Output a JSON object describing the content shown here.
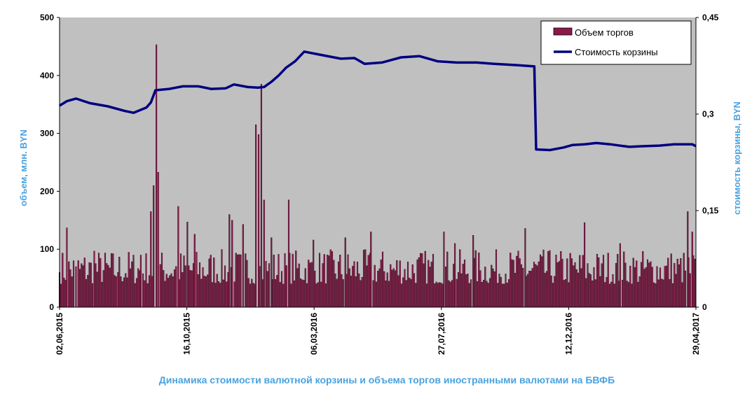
{
  "colors": {
    "plot_bg": "#c0c0c0",
    "bar_fill": "#8b1a4a",
    "line": "#000080",
    "axis_title": "#4aa3df",
    "caption": "#4aa3df"
  },
  "chart_data": {
    "type": "bar+line",
    "title": "Динамика  стоимости валютной корзины и объема торгов иностранными валютами на БВФБ",
    "ylabel_left": "объем, млн. BYN",
    "ylabel_right": "стоимость  корзины, BYN",
    "ylim_left": [
      0,
      500
    ],
    "ylim_right": [
      0,
      0.45
    ],
    "yticks_left": [
      "0",
      "100",
      "200",
      "300",
      "400",
      "500"
    ],
    "yticks_right": [
      "0",
      "0,15",
      "0,3",
      "0,45"
    ],
    "xticks": [
      "02,06,2015",
      "16,10,2015",
      "06,03,2016",
      "27,07,2016",
      "12,12,2016",
      "29,04,2017"
    ],
    "grid": false,
    "legend_position": "top-right",
    "series": [
      {
        "name": "Объем торгов",
        "kind": "bar",
        "axis": "left",
        "peaks": [
          {
            "date": "2015-06-02",
            "value": 60
          },
          {
            "date": "2015-06-10",
            "value": 137
          },
          {
            "date": "2015-06-20",
            "value": 70
          },
          {
            "date": "2015-07-10",
            "value": 97
          },
          {
            "date": "2015-08-05",
            "value": 60
          },
          {
            "date": "2015-08-30",
            "value": 90
          },
          {
            "date": "2015-09-10",
            "value": 165
          },
          {
            "date": "2015-09-13",
            "value": 210
          },
          {
            "date": "2015-09-16",
            "value": 453
          },
          {
            "date": "2015-09-18",
            "value": 233
          },
          {
            "date": "2015-10-10",
            "value": 174
          },
          {
            "date": "2015-10-20",
            "value": 147
          },
          {
            "date": "2015-10-28",
            "value": 126
          },
          {
            "date": "2015-12-05",
            "value": 160
          },
          {
            "date": "2015-12-08",
            "value": 150
          },
          {
            "date": "2015-12-20",
            "value": 143
          },
          {
            "date": "2016-01-03",
            "value": 315
          },
          {
            "date": "2016-01-06",
            "value": 298
          },
          {
            "date": "2016-01-09",
            "value": 385
          },
          {
            "date": "2016-01-12",
            "value": 185
          },
          {
            "date": "2016-01-20",
            "value": 120
          },
          {
            "date": "2016-02-08",
            "value": 185
          },
          {
            "date": "2016-03-06",
            "value": 116
          },
          {
            "date": "2016-04-10",
            "value": 120
          },
          {
            "date": "2016-05-08",
            "value": 130
          },
          {
            "date": "2016-07-27",
            "value": 130
          },
          {
            "date": "2016-08-08",
            "value": 110
          },
          {
            "date": "2016-08-28",
            "value": 124
          },
          {
            "date": "2016-10-24",
            "value": 136
          },
          {
            "date": "2016-12-28",
            "value": 146
          },
          {
            "date": "2017-02-05",
            "value": 110
          },
          {
            "date": "2017-04-20",
            "value": 165
          },
          {
            "date": "2017-04-25",
            "value": 130
          }
        ],
        "typical_range": [
          40,
          100
        ]
      },
      {
        "name": "Стоимость  корзины",
        "kind": "line",
        "axis": "right",
        "x": [
          "2015-06-02",
          "2015-06-10",
          "2015-06-20",
          "2015-07-05",
          "2015-07-25",
          "2015-08-12",
          "2015-08-22",
          "2015-09-05",
          "2015-09-10",
          "2015-09-15",
          "2015-09-30",
          "2015-10-15",
          "2015-11-01",
          "2015-11-15",
          "2015-12-01",
          "2015-12-10",
          "2015-12-25",
          "2016-01-05",
          "2016-01-12",
          "2016-01-20",
          "2016-01-28",
          "2016-02-05",
          "2016-02-15",
          "2016-02-25",
          "2016-03-10",
          "2016-04-05",
          "2016-04-20",
          "2016-05-01",
          "2016-05-20",
          "2016-06-10",
          "2016-06-30",
          "2016-07-20",
          "2016-08-10",
          "2016-09-01",
          "2016-09-20",
          "2016-10-15",
          "2016-11-03",
          "2016-11-05",
          "2016-11-20",
          "2016-12-05",
          "2016-12-15",
          "2016-12-28",
          "2017-01-10",
          "2017-01-25",
          "2017-02-15",
          "2017-03-01",
          "2017-03-20",
          "2017-04-05",
          "2017-04-25",
          "2017-04-29"
        ],
        "values": [
          0.313,
          0.32,
          0.324,
          0.317,
          0.312,
          0.305,
          0.302,
          0.31,
          0.318,
          0.337,
          0.339,
          0.343,
          0.343,
          0.339,
          0.34,
          0.346,
          0.342,
          0.341,
          0.342,
          0.35,
          0.36,
          0.372,
          0.382,
          0.397,
          0.393,
          0.386,
          0.387,
          0.378,
          0.38,
          0.388,
          0.39,
          0.382,
          0.38,
          0.38,
          0.378,
          0.376,
          0.374,
          0.245,
          0.244,
          0.248,
          0.252,
          0.253,
          0.255,
          0.253,
          0.249,
          0.25,
          0.251,
          0.253,
          0.253,
          0.25
        ]
      }
    ]
  }
}
